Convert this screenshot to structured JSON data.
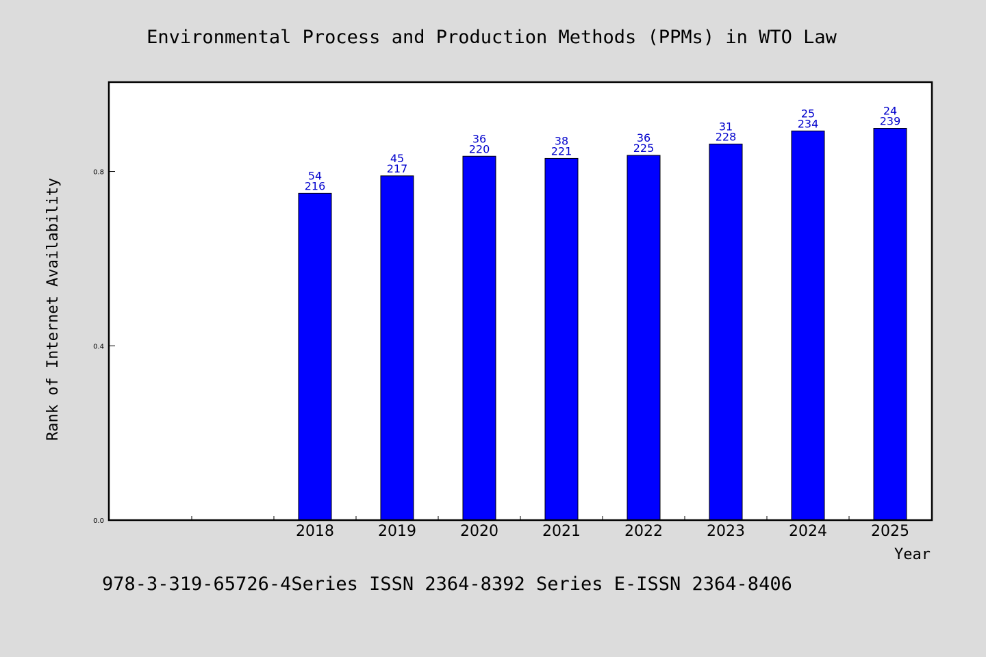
{
  "chart_data": {
    "type": "bar",
    "title": "Environmental Process and Production Methods (PPMs) in WTO Law",
    "xlabel": "Year",
    "ylabel": "Rank of Internet Availability",
    "footer": "978-3-319-65726-4Series ISSN 2364-8392 Series E-ISSN 2364-8406",
    "categories": [
      "2018",
      "2019",
      "2020",
      "2021",
      "2022",
      "2023",
      "2024",
      "2025"
    ],
    "values": [
      0.75,
      0.79,
      0.835,
      0.83,
      0.837,
      0.863,
      0.893,
      0.899
    ],
    "label_top": [
      "54",
      "45",
      "36",
      "38",
      "36",
      "31",
      "25",
      "24"
    ],
    "label_bottom": [
      "216",
      "217",
      "220",
      "221",
      "225",
      "228",
      "234",
      "239"
    ],
    "yticks": [
      0.0,
      0.4,
      0.8
    ],
    "ytick_labels": [
      "0.0",
      "0.4",
      "0.8"
    ],
    "ylim": [
      0,
      1.005
    ],
    "grid": false,
    "bar_color": "#0000ff",
    "label_color": "#0000cc",
    "background": "#dcdcdc"
  }
}
